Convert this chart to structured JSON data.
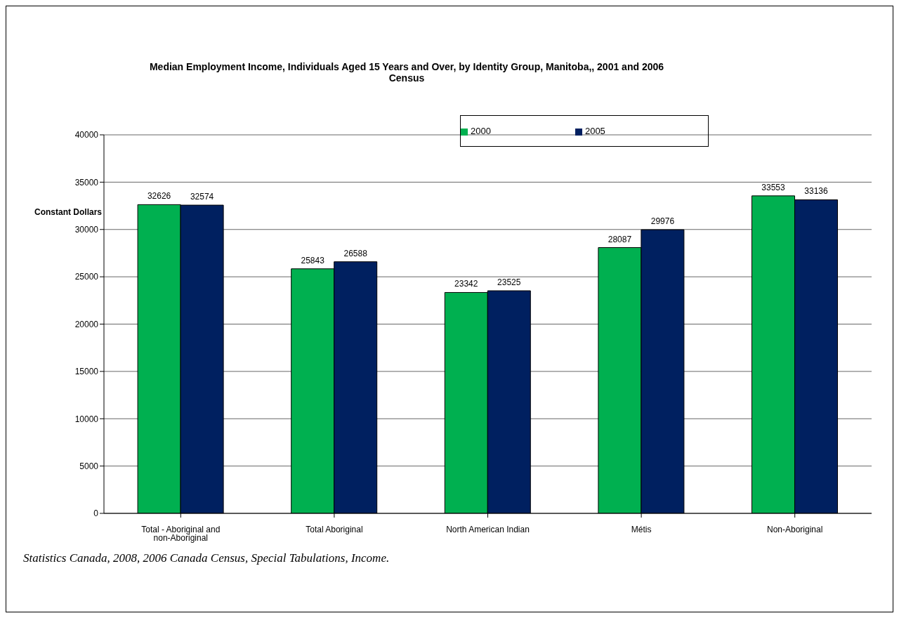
{
  "chart_data": {
    "type": "bar",
    "title": "Median Employment Income,  Individuals Aged 15 Years and Over, by Identity Group, Manitoba,,  2001 and 2006 Census",
    "ylabel": "Constant Dollars",
    "categories": [
      "Total - Aboriginal and non-Aboriginal",
      "Total Aboriginal",
      "North American Indian",
      "Métis",
      "Non-Aboriginal"
    ],
    "series": [
      {
        "name": "2000",
        "color": "#00b050",
        "values": [
          32626,
          25843,
          23342,
          28087,
          33553
        ]
      },
      {
        "name": "2005",
        "color": "#002060",
        "values": [
          32574,
          26588,
          23525,
          29976,
          33136
        ]
      }
    ],
    "ylim": [
      0,
      40000
    ],
    "yticks": [
      0,
      5000,
      10000,
      15000,
      20000,
      25000,
      30000,
      35000,
      40000
    ],
    "grid": "y",
    "legend": "top right",
    "data_labels": true,
    "annotations": [
      "Statistics Canada, 2008, 2006 Canada Census, Special Tabulations, Income."
    ]
  }
}
